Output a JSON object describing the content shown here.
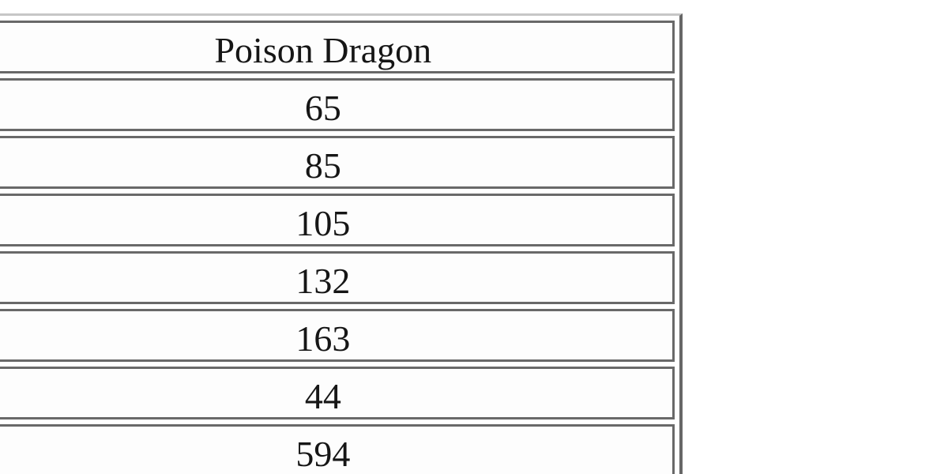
{
  "chart_data": {
    "type": "table",
    "title": "",
    "columns": [
      "",
      "Poison Dragon"
    ],
    "rows": [
      [
        "",
        65
      ],
      [
        "",
        85
      ],
      [
        "",
        105
      ],
      [
        "",
        132
      ],
      [
        "",
        163
      ],
      [
        "",
        44
      ],
      [
        "",
        594
      ]
    ],
    "layout_hints": {
      "header_visible_text": "Poison Drag",
      "left_column_cells_empty": true,
      "table_cropped_left_and_right": true,
      "grid": "separate cell borders with spacing (classic bordered HTML table)"
    }
  },
  "table": {
    "header": [
      "",
      "Poison Dragon"
    ],
    "rows": [
      [
        "",
        "65"
      ],
      [
        "",
        "85"
      ],
      [
        "",
        "105"
      ],
      [
        "",
        "132"
      ],
      [
        "",
        "163"
      ],
      [
        "",
        "44"
      ],
      [
        "",
        "594"
      ]
    ]
  },
  "colors": {
    "background": "#ffffff",
    "cell_background": "#fdfdfd",
    "border_dark": "#696969",
    "border_light": "#c6c6c6",
    "text": "#161616"
  }
}
